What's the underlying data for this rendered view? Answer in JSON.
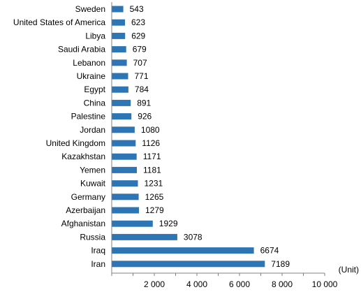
{
  "chart_data": {
    "type": "bar",
    "orientation": "horizontal",
    "categories": [
      "Sweden",
      "United States of America",
      "Libya",
      "Saudi Arabia",
      "Lebanon",
      "Ukraine",
      "Egypt",
      "China",
      "Palestine",
      "Jordan",
      "United Kingdom",
      "Kazakhstan",
      "Yemen",
      "Kuwait",
      "Germany",
      "Azerbaijan",
      "Afghanistan",
      "Russia",
      "Iraq",
      "Iran"
    ],
    "values": [
      543,
      623,
      629,
      679,
      707,
      771,
      784,
      891,
      926,
      1080,
      1126,
      1171,
      1181,
      1231,
      1265,
      1279,
      1929,
      3078,
      6674,
      7189
    ],
    "value_labels": [
      "543",
      "623",
      "629",
      "679",
      "707",
      "771",
      "784",
      "891",
      "926",
      "1080",
      "1126",
      "1171",
      "1181",
      "1231",
      "1265",
      "1279",
      "1929",
      "3078",
      "6674",
      "7189"
    ],
    "xlim": [
      0,
      10000
    ],
    "xticks": [
      2000,
      4000,
      6000,
      8000,
      10000
    ],
    "xtick_labels": [
      "2 000",
      "4 000",
      "6 000",
      "8 000",
      "10 000"
    ],
    "unit": "(Unit)",
    "bar_color": "#2e75b6",
    "grid": false,
    "legend": "none"
  }
}
